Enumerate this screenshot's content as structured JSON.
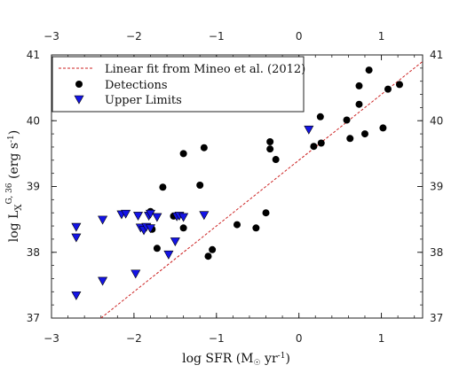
{
  "chart_data": {
    "type": "scatter",
    "xlabel": {
      "prefix": "log SFR (M",
      "sub": "☉",
      "mid": " yr",
      "sup": "-1",
      "suffix": ")"
    },
    "ylabel": {
      "prefix": "log L",
      "sub": "X",
      "sup": "G, 36",
      "suffix": " (erg s",
      "sup2": "-1",
      "suffix2": ")"
    },
    "xlim": [
      -3,
      1.5
    ],
    "ylim": [
      37,
      41
    ],
    "xticks": [
      -3,
      -2,
      -1,
      0,
      1
    ],
    "yticks": [
      37,
      38,
      39,
      40,
      41
    ],
    "xtick_labels": [
      "−3",
      "−2",
      "−1",
      "0",
      "1"
    ],
    "ytick_labels": [
      "37",
      "38",
      "39",
      "40",
      "41"
    ],
    "legend_position": "top-left",
    "fit": {
      "name": "Linear fit from Mineo et al. (2012)",
      "color": "#cc2222",
      "x": [
        -2.4,
        1.5
      ],
      "y": [
        37.0,
        40.9
      ]
    },
    "series": [
      {
        "name": "Detections",
        "marker": "circle",
        "color": "#000000",
        "points": [
          [
            -1.8,
            38.62
          ],
          [
            -1.78,
            38.35
          ],
          [
            -1.72,
            38.06
          ],
          [
            -1.65,
            38.99
          ],
          [
            -1.52,
            38.55
          ],
          [
            -1.4,
            38.37
          ],
          [
            -1.4,
            39.5
          ],
          [
            -1.2,
            39.02
          ],
          [
            -1.15,
            39.59
          ],
          [
            -1.1,
            37.94
          ],
          [
            -1.05,
            38.04
          ],
          [
            -0.75,
            38.42
          ],
          [
            -0.52,
            38.37
          ],
          [
            -0.4,
            38.6
          ],
          [
            -0.35,
            39.68
          ],
          [
            -0.35,
            39.57
          ],
          [
            -0.28,
            39.41
          ],
          [
            0.18,
            39.61
          ],
          [
            0.26,
            40.06
          ],
          [
            0.27,
            39.66
          ],
          [
            0.58,
            40.01
          ],
          [
            0.62,
            39.73
          ],
          [
            0.73,
            40.25
          ],
          [
            0.73,
            40.53
          ],
          [
            0.8,
            39.8
          ],
          [
            0.85,
            40.77
          ],
          [
            1.02,
            39.89
          ],
          [
            1.08,
            40.48
          ],
          [
            1.22,
            40.55
          ]
        ]
      },
      {
        "name": "Upper Limits",
        "marker": "triangle-down",
        "color": "#1414e6",
        "points": [
          [
            -2.7,
            38.38
          ],
          [
            -2.7,
            38.22
          ],
          [
            -2.7,
            37.34
          ],
          [
            -2.38,
            37.56
          ],
          [
            -2.38,
            38.49
          ],
          [
            -2.15,
            38.57
          ],
          [
            -2.1,
            38.58
          ],
          [
            -1.98,
            37.67
          ],
          [
            -1.95,
            38.55
          ],
          [
            -1.92,
            38.37
          ],
          [
            -1.88,
            38.33
          ],
          [
            -1.85,
            38.38
          ],
          [
            -1.82,
            38.55
          ],
          [
            -1.8,
            38.58
          ],
          [
            -1.8,
            38.36
          ],
          [
            -1.72,
            38.53
          ],
          [
            -1.58,
            37.96
          ],
          [
            -1.5,
            38.16
          ],
          [
            -1.48,
            38.54
          ],
          [
            -1.45,
            38.55
          ],
          [
            -1.4,
            38.53
          ],
          [
            -1.15,
            38.56
          ],
          [
            0.12,
            39.86
          ]
        ]
      }
    ]
  }
}
